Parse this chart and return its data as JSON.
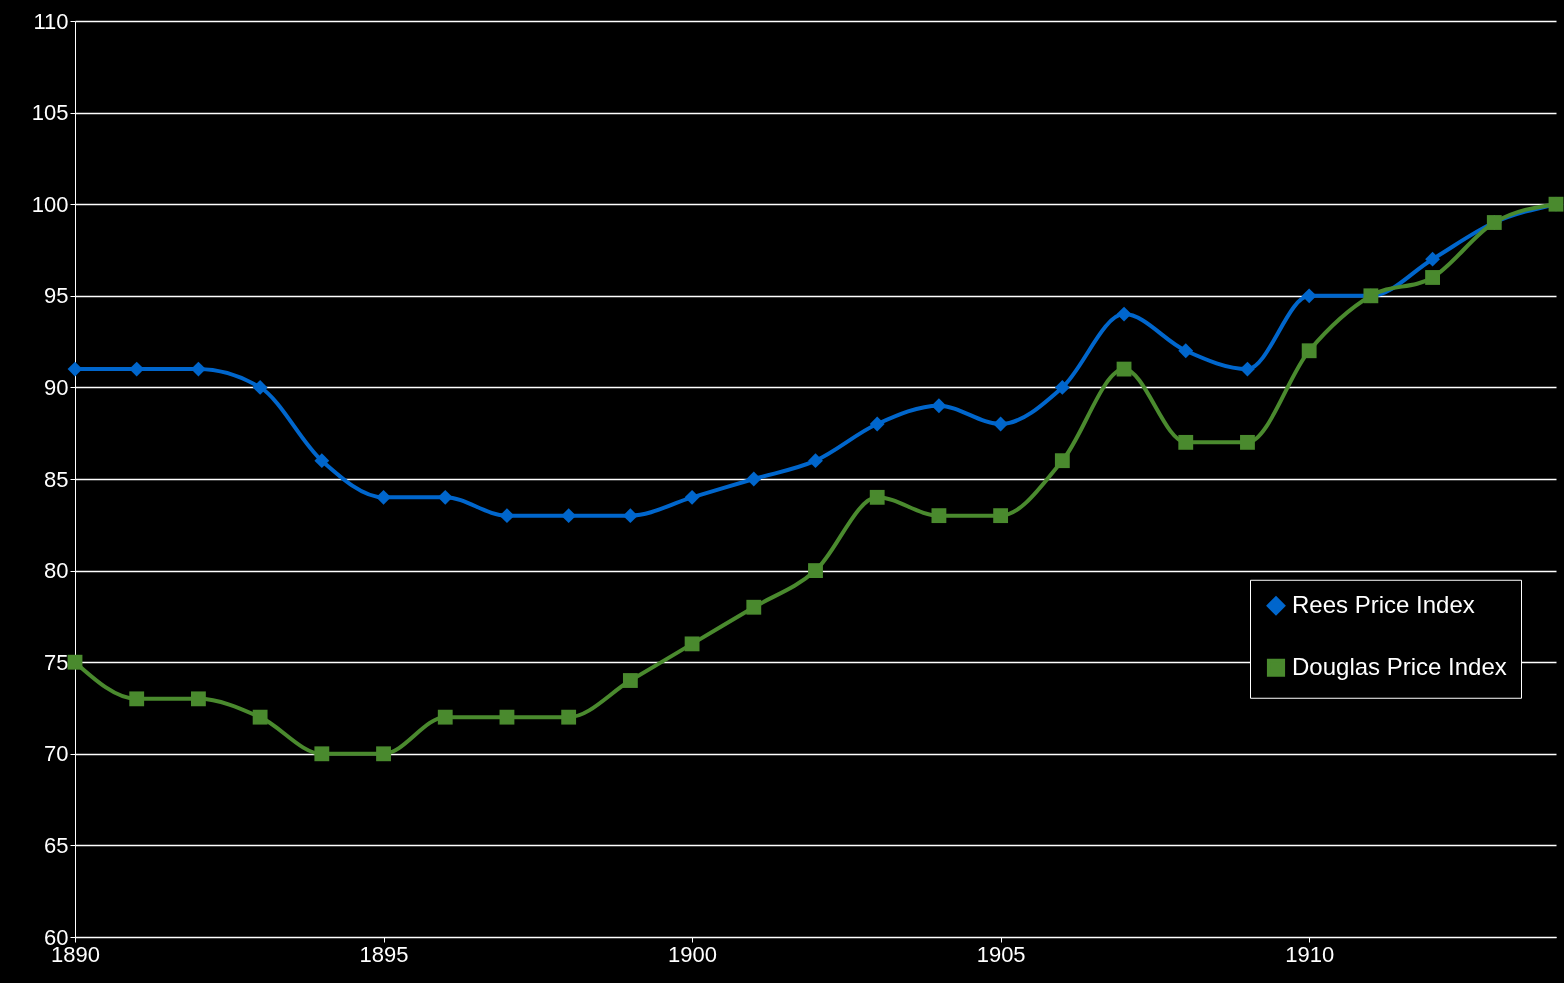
{
  "chart_data": {
    "type": "line",
    "x": [
      1890,
      1891,
      1892,
      1893,
      1894,
      1895,
      1896,
      1897,
      1898,
      1899,
      1900,
      1901,
      1902,
      1903,
      1904,
      1905,
      1906,
      1907,
      1908,
      1909,
      1910,
      1911,
      1912,
      1913,
      1914
    ],
    "series": [
      {
        "name": "Rees Price Index",
        "color": "#0066cc",
        "marker": "diamond",
        "values": [
          91,
          91,
          91,
          90,
          86,
          84,
          84,
          83,
          83,
          83,
          84,
          85,
          86,
          88,
          89,
          88,
          90,
          94,
          92,
          91,
          95,
          95,
          97,
          99,
          100
        ]
      },
      {
        "name": "Douglas Price Index",
        "color": "#4a8a2e",
        "marker": "square",
        "values": [
          75,
          73,
          73,
          72,
          70,
          70,
          72,
          72,
          72,
          74,
          76,
          78,
          80,
          84,
          83,
          83,
          86,
          91,
          87,
          87,
          92,
          95,
          96,
          99,
          100
        ]
      }
    ],
    "xlim": [
      1890,
      1914
    ],
    "xticks": [
      1890,
      1895,
      1900,
      1905,
      1910
    ],
    "ylim": [
      60,
      110
    ],
    "yticks": [
      60,
      65,
      70,
      75,
      80,
      85,
      90,
      95,
      100,
      105,
      110
    ],
    "grid": "y",
    "legend": "right",
    "line_style": "solid"
  }
}
